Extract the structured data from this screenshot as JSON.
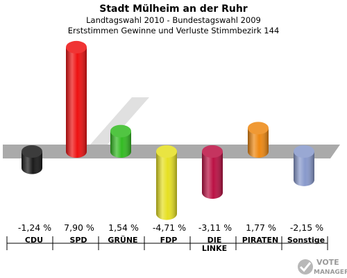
{
  "chart_data": {
    "type": "bar",
    "title": "Stadt Mülheim an der Ruhr",
    "subtitle": "Landtagswahl 2010 - Bundestagswahl 2009",
    "subtitle2": "Erststimmen Gewinne und Verluste Stimmbezirk 144",
    "categories": [
      "CDU",
      "SPD",
      "GRÜNE",
      "FDP",
      "DIE LINKE",
      "PIRATEN",
      "Sonstige"
    ],
    "category_lines": [
      [
        "CDU"
      ],
      [
        "SPD"
      ],
      [
        "GRÜNE"
      ],
      [
        "FDP"
      ],
      [
        "DIE",
        "LINKE"
      ],
      [
        "PIRATEN"
      ],
      [
        "Sonstige"
      ]
    ],
    "values": [
      -1.24,
      7.9,
      1.54,
      -4.71,
      -3.11,
      1.77,
      -2.15
    ],
    "value_labels": [
      "-1,24 %",
      "7,90 %",
      "1,54 %",
      "-4,71 %",
      "-3,11 %",
      "1,77 %",
      "-2,15 %"
    ],
    "colors": [
      "#1a1a1a",
      "#ee1111",
      "#33bb22",
      "#e6e022",
      "#bb1144",
      "#ee8811",
      "#8899cc"
    ],
    "ylim": [
      -5,
      8
    ]
  },
  "logo": {
    "text_top": "VOTE",
    "text_bottom": "MANAGER"
  }
}
